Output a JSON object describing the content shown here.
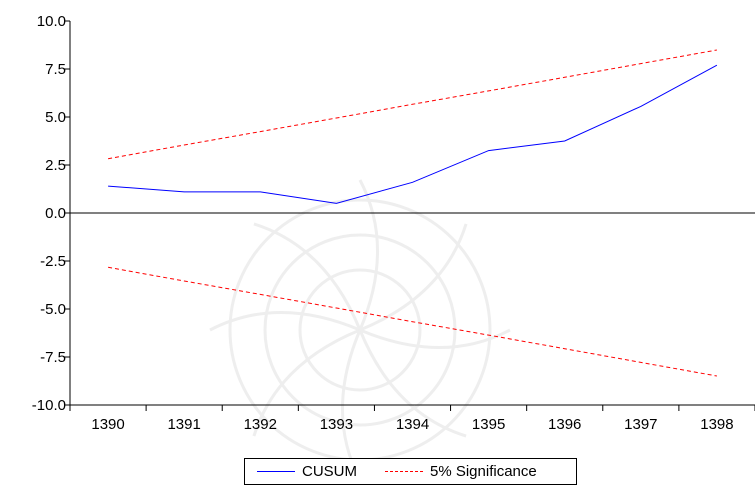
{
  "chart_data": {
    "type": "line",
    "categories": [
      "1390",
      "1391",
      "1392",
      "1393",
      "1394",
      "1395",
      "1396",
      "1397",
      "1398"
    ],
    "series": [
      {
        "name": "CUSUM",
        "color": "#0000ff",
        "style": "solid",
        "values": [
          1.4,
          1.1,
          1.1,
          0.5,
          1.6,
          3.25,
          3.75,
          5.55,
          7.7
        ]
      },
      {
        "name": "5% Significance",
        "color": "#ff0000",
        "style": "dashed",
        "values": [
          2.83,
          3.54,
          4.24,
          4.95,
          5.66,
          6.36,
          7.07,
          7.78,
          8.49
        ]
      },
      {
        "name": "",
        "color": "#ff0000",
        "style": "dashed",
        "values": [
          -2.83,
          -3.54,
          -4.24,
          -4.95,
          -5.66,
          -6.36,
          -7.07,
          -7.78,
          -8.49
        ]
      }
    ],
    "yticks": [
      "10.0",
      "7.5",
      "5.0",
      "2.5",
      "0.0",
      "-2.5",
      "-5.0",
      "-7.5",
      "-10.0"
    ],
    "ylim": [
      -10,
      10
    ],
    "title": "",
    "xlabel": "",
    "ylabel": "",
    "grid": false,
    "legend": {
      "placement": "bottom-center",
      "entries": [
        {
          "label": "CUSUM",
          "style": "solid",
          "color": "#0000ff"
        },
        {
          "label": "5% Significance",
          "style": "dashed",
          "color": "#ff0000"
        }
      ]
    }
  }
}
